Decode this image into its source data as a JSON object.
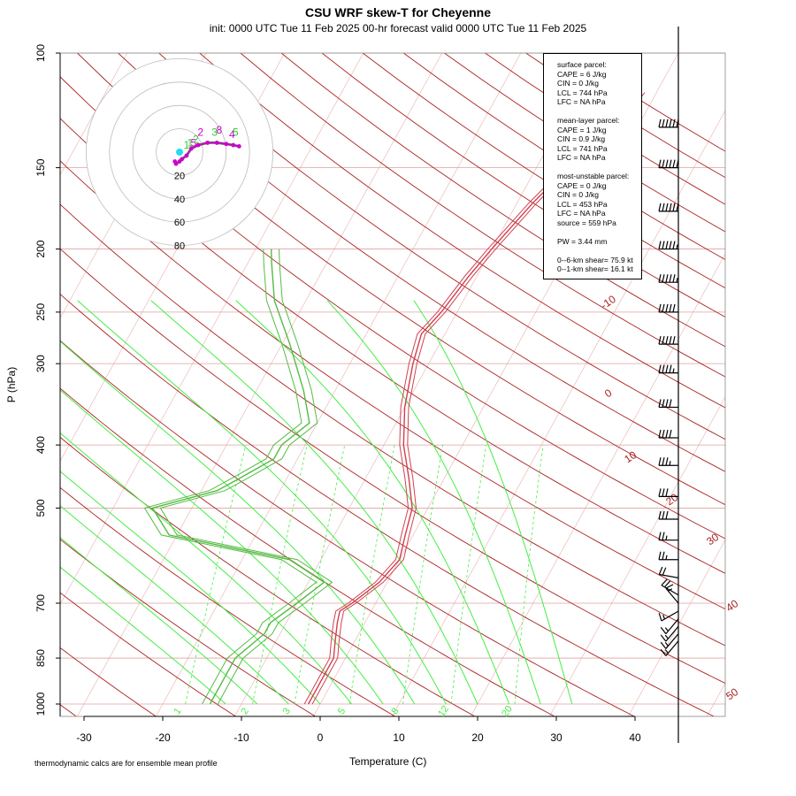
{
  "chart_data": {
    "type": "skew-t",
    "title": "CSU WRF skew-T for Cheyenne",
    "subtitle": "init: 0000 UTC Tue 11 Feb 2025     00-hr forecast valid 0000 UTC Tue 11 Feb 2025",
    "xlabel": "Temperature (C)",
    "ylabel": "P (hPa)",
    "x_ticks": [
      -30,
      -20,
      -10,
      0,
      10,
      20,
      30,
      40
    ],
    "x_tick_labels": [
      "-30",
      "-20",
      "-10",
      "0",
      "10",
      "20",
      "30",
      "40"
    ],
    "y_ticks": [
      100,
      150,
      200,
      250,
      300,
      400,
      500,
      700,
      850,
      1000
    ],
    "y_tick_labels": [
      "100",
      "150",
      "200",
      "250",
      "300",
      "400",
      "500",
      "700",
      "850",
      "1000"
    ],
    "y_scale": "log",
    "dry_adiabat_labels": [
      "-10",
      "0",
      "10",
      "20",
      "30",
      "40",
      "50"
    ],
    "mixing_ratio_labels": [
      "1",
      "2",
      "3",
      "5",
      "8",
      "12",
      "20"
    ],
    "temperature_profile": {
      "color": "#d04050",
      "p": [
        1000,
        850,
        800,
        750,
        720,
        700,
        650,
        600,
        550,
        500,
        450,
        400,
        350,
        300,
        270,
        250,
        220,
        200,
        170,
        150,
        130,
        115
      ],
      "t": [
        -1.5,
        -1.5,
        -2.5,
        -3.5,
        -4,
        -3,
        -1,
        0,
        -1,
        -2,
        -4.5,
        -7.5,
        -10,
        -12,
        -13,
        -12,
        -11,
        -10,
        -8,
        -6,
        -3,
        -2
      ]
    },
    "temperature_members": [
      {
        "p": [
          1000,
          850,
          800,
          750,
          720,
          700,
          650,
          600,
          550,
          500,
          450,
          400,
          350,
          300,
          270,
          250,
          220,
          200,
          170,
          150,
          130,
          115
        ],
        "t": [
          -1.0,
          -1.0,
          -2.0,
          -3.0,
          -3.5,
          -2.5,
          -0.5,
          0.5,
          -0.5,
          -1.5,
          -4.0,
          -7.0,
          -9.5,
          -11.5,
          -12.5,
          -11.5,
          -10.5,
          -9.5,
          -7.5,
          -5.5,
          -2.5,
          -1.5
        ]
      },
      {
        "p": [
          1000,
          850,
          800,
          750,
          720,
          700,
          650,
          600,
          550,
          500,
          450,
          400,
          350,
          300,
          270,
          250,
          220,
          200,
          170,
          150,
          130,
          115
        ],
        "t": [
          -2.0,
          -2.0,
          -3.0,
          -4.0,
          -4.5,
          -3.5,
          -1.5,
          -0.5,
          -1.5,
          -2.5,
          -5.0,
          -8.0,
          -10.5,
          -12.5,
          -13.5,
          -12.5,
          -11.5,
          -10.5,
          -8.5,
          -6.5,
          -3.5,
          -2.5
        ]
      }
    ],
    "dewpoint_profile": {
      "color": "#55bb44",
      "p": [
        1000,
        850,
        780,
        750,
        700,
        650,
        600,
        550,
        500,
        470,
        450,
        420,
        400,
        370,
        330,
        280,
        240,
        210,
        200
      ],
      "t": [
        -14,
        -14,
        -12,
        -12,
        -10,
        -8,
        -14,
        -31,
        -35,
        -28,
        -26,
        -23,
        -23,
        -21,
        -24,
        -29,
        -34,
        -37,
        -38
      ]
    },
    "dewpoint_members": [
      {
        "p": [
          1000,
          850,
          780,
          750,
          700,
          650,
          600,
          550,
          500,
          470,
          450,
          420,
          400,
          370,
          330,
          280,
          240,
          210,
          200
        ],
        "t": [
          -13,
          -13,
          -11,
          -11,
          -9,
          -7,
          -13,
          -30,
          -34,
          -27,
          -25,
          -22,
          -22,
          -20,
          -23,
          -28,
          -33,
          -36,
          -37
        ]
      },
      {
        "p": [
          1000,
          850,
          780,
          750,
          700,
          650,
          600,
          550,
          500,
          470,
          450,
          420,
          400,
          370,
          330,
          280,
          240,
          210,
          200
        ],
        "t": [
          -15,
          -15,
          -13,
          -13,
          -11,
          -9,
          -15,
          -32,
          -36,
          -29,
          -27,
          -24,
          -24,
          -22,
          -25,
          -30,
          -35,
          -38,
          -39
        ]
      }
    ],
    "wind_barbs": [
      {
        "p": 130,
        "speed_kt": 60,
        "dir_deg": 270
      },
      {
        "p": 150,
        "speed_kt": 60,
        "dir_deg": 270
      },
      {
        "p": 175,
        "speed_kt": 60,
        "dir_deg": 270
      },
      {
        "p": 200,
        "speed_kt": 55,
        "dir_deg": 270
      },
      {
        "p": 225,
        "speed_kt": 55,
        "dir_deg": 270
      },
      {
        "p": 250,
        "speed_kt": 50,
        "dir_deg": 270
      },
      {
        "p": 280,
        "speed_kt": 50,
        "dir_deg": 270
      },
      {
        "p": 310,
        "speed_kt": 45,
        "dir_deg": 270
      },
      {
        "p": 350,
        "speed_kt": 40,
        "dir_deg": 270
      },
      {
        "p": 390,
        "speed_kt": 40,
        "dir_deg": 270
      },
      {
        "p": 430,
        "speed_kt": 35,
        "dir_deg": 270
      },
      {
        "p": 480,
        "speed_kt": 30,
        "dir_deg": 270
      },
      {
        "p": 520,
        "speed_kt": 30,
        "dir_deg": 270
      },
      {
        "p": 560,
        "speed_kt": 25,
        "dir_deg": 270
      },
      {
        "p": 600,
        "speed_kt": 25,
        "dir_deg": 270
      },
      {
        "p": 640,
        "speed_kt": 20,
        "dir_deg": 280
      },
      {
        "p": 680,
        "speed_kt": 20,
        "dir_deg": 300
      },
      {
        "p": 700,
        "speed_kt": 15,
        "dir_deg": 320
      },
      {
        "p": 720,
        "speed_kt": 15,
        "dir_deg": 240
      },
      {
        "p": 740,
        "speed_kt": 15,
        "dir_deg": 220
      },
      {
        "p": 760,
        "speed_kt": 15,
        "dir_deg": 220
      },
      {
        "p": 780,
        "speed_kt": 15,
        "dir_deg": 220
      },
      {
        "p": 800,
        "speed_kt": 15,
        "dir_deg": 220
      }
    ],
    "hodograph": {
      "ring_labels": [
        "20",
        "40",
        "60",
        "80"
      ],
      "ring_values_kt": [
        20,
        40,
        60,
        80
      ],
      "storm_motion_color": "#22ddee",
      "trace_color": "#cc00cc",
      "trace_green_color": "#33cc33",
      "trace_kt": [
        {
          "u": -4,
          "v": -8
        },
        {
          "u": -3,
          "v": -10
        },
        {
          "u": 0,
          "v": -8
        },
        {
          "u": 2,
          "v": -6
        },
        {
          "u": 6,
          "v": -3
        },
        {
          "u": 10,
          "v": 3
        },
        {
          "u": 16,
          "v": 6
        },
        {
          "u": 24,
          "v": 8
        },
        {
          "u": 32,
          "v": 8
        },
        {
          "u": 40,
          "v": 7
        },
        {
          "u": 46,
          "v": 6
        },
        {
          "u": 51,
          "v": 5
        }
      ],
      "height_labels": [
        {
          "text": "1",
          "u": 6,
          "v": 3
        },
        {
          "text": "2",
          "u": 18,
          "v": 14
        },
        {
          "text": "3",
          "u": 30,
          "v": 14
        },
        {
          "text": "4",
          "u": 45,
          "v": 12
        },
        {
          "text": "5",
          "u": 48,
          "v": 14
        },
        {
          "text": "8",
          "u": 34,
          "v": 16
        },
        {
          "text": "1",
          "u": 9,
          "v": 5
        },
        {
          "text": "5",
          "u": 12,
          "v": 5
        },
        {
          "text": "2",
          "u": 14,
          "v": 8
        }
      ],
      "storm_motion_kt": {
        "u": 0,
        "v": 0
      }
    }
  },
  "params_box": {
    "surface": {
      "heading": "surface parcel:",
      "cape": "CAPE = 6 J/kg",
      "cin": "CIN = 0 J/kg",
      "lcl": "LCL = 744 hPa",
      "lfc": "LFC = NA hPa"
    },
    "mean_layer": {
      "heading": "mean-layer parcel:",
      "cape": "CAPE = 1 J/kg",
      "cin": "CIN = 0.9 J/kg",
      "lcl": "LCL = 741 hPa",
      "lfc": "LFC = NA hPa"
    },
    "most_unstable": {
      "heading": "most-unstable parcel:",
      "cape": "CAPE = 0 J/kg",
      "cin": "CIN = 0 J/kg",
      "lcl": "LCL = 453 hPa",
      "lfc": "LFC = NA hPa",
      "source": "source = 559 hPa"
    },
    "pw": "PW =  3.44 mm",
    "shear_6km": "0--6-km shear= 75.9 kt",
    "shear_1km": "0--1-km shear= 16.1 kt"
  },
  "footnote": "thermodynamic calcs are for ensemble mean profile",
  "colors": {
    "dry_adiabat": "#aa2222",
    "isotherm_grid": "#e8b0b0",
    "isobar": "#e0a0a0",
    "moist_adiabat": "#44ee44",
    "mixing_ratio": "#44ee44",
    "wind_barb": "#000000"
  }
}
